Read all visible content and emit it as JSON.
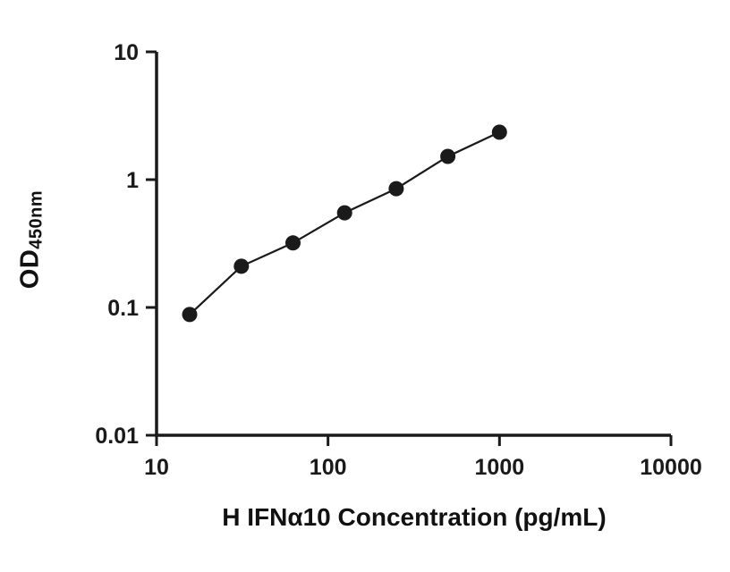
{
  "chart_data": {
    "type": "scatter",
    "title": "",
    "xlabel": "H IFNα10 Concentration (pg/mL)",
    "ylabel_main": "OD",
    "ylabel_sub": "450nm",
    "x": [
      15.6,
      31.25,
      62.5,
      125,
      250,
      500,
      1000
    ],
    "y": [
      0.088,
      0.21,
      0.32,
      0.55,
      0.85,
      1.52,
      2.35
    ],
    "xlim": [
      10,
      10000
    ],
    "ylim": [
      0.01,
      10
    ],
    "x_scale": "log",
    "y_scale": "log",
    "x_ticks": [
      10,
      100,
      1000,
      10000
    ],
    "x_tick_labels": [
      "10",
      "100",
      "1000",
      "10000"
    ],
    "y_ticks": [
      0.01,
      0.1,
      1,
      10
    ],
    "y_tick_labels": [
      "0.01",
      "0.1",
      "1",
      "10"
    ],
    "grid": false,
    "legend": false,
    "line_color": "#1a1a1a",
    "point_color": "#1a1a1a",
    "background_color": "#ffffff"
  }
}
